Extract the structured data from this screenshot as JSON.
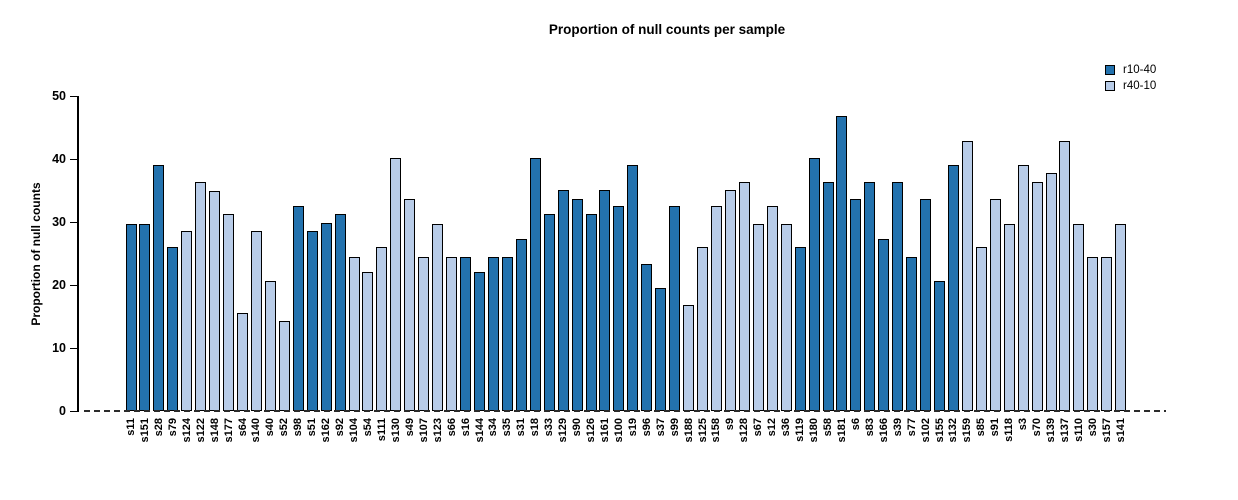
{
  "chart_data": {
    "type": "bar",
    "title": "Proportion of null counts per sample",
    "ylabel": "Proportion of null counts",
    "xlabel": "",
    "ylim": [
      0,
      50
    ],
    "yticks": [
      0,
      10,
      20,
      30,
      40,
      50
    ],
    "grid": false,
    "legend_position": "top-right",
    "legend": [
      {
        "name": "r10-40",
        "color": "#2372ae"
      },
      {
        "name": "r40-10",
        "color": "#b8cce8"
      }
    ],
    "baseline_style": "dashed",
    "bars": [
      {
        "label": "s11",
        "value": 29.7,
        "series": "r10-40"
      },
      {
        "label": "s151",
        "value": 29.7,
        "series": "r10-40"
      },
      {
        "label": "s28",
        "value": 39.0,
        "series": "r10-40"
      },
      {
        "label": "s79",
        "value": 26.0,
        "series": "r10-40"
      },
      {
        "label": "s124",
        "value": 28.6,
        "series": "r40-10"
      },
      {
        "label": "s122",
        "value": 36.3,
        "series": "r40-10"
      },
      {
        "label": "s148",
        "value": 34.9,
        "series": "r40-10"
      },
      {
        "label": "s177",
        "value": 31.2,
        "series": "r40-10"
      },
      {
        "label": "s64",
        "value": 15.5,
        "series": "r40-10"
      },
      {
        "label": "s140",
        "value": 28.6,
        "series": "r40-10"
      },
      {
        "label": "s40",
        "value": 20.7,
        "series": "r40-10"
      },
      {
        "label": "s52",
        "value": 14.3,
        "series": "r40-10"
      },
      {
        "label": "s98",
        "value": 32.5,
        "series": "r10-40"
      },
      {
        "label": "s51",
        "value": 28.6,
        "series": "r10-40"
      },
      {
        "label": "s162",
        "value": 29.8,
        "series": "r10-40"
      },
      {
        "label": "s92",
        "value": 31.2,
        "series": "r10-40"
      },
      {
        "label": "s104",
        "value": 24.5,
        "series": "r40-10"
      },
      {
        "label": "s54",
        "value": 22.0,
        "series": "r40-10"
      },
      {
        "label": "s111",
        "value": 26.0,
        "series": "r40-10"
      },
      {
        "label": "s130",
        "value": 40.2,
        "series": "r40-10"
      },
      {
        "label": "s49",
        "value": 33.7,
        "series": "r40-10"
      },
      {
        "label": "s107",
        "value": 24.5,
        "series": "r40-10"
      },
      {
        "label": "s123",
        "value": 29.7,
        "series": "r40-10"
      },
      {
        "label": "s66",
        "value": 24.5,
        "series": "r40-10"
      },
      {
        "label": "s16",
        "value": 24.5,
        "series": "r10-40"
      },
      {
        "label": "s144",
        "value": 22.0,
        "series": "r10-40"
      },
      {
        "label": "s34",
        "value": 24.5,
        "series": "r10-40"
      },
      {
        "label": "s35",
        "value": 24.5,
        "series": "r10-40"
      },
      {
        "label": "s31",
        "value": 27.3,
        "series": "r10-40"
      },
      {
        "label": "s18",
        "value": 40.2,
        "series": "r10-40"
      },
      {
        "label": "s33",
        "value": 31.2,
        "series": "r10-40"
      },
      {
        "label": "s129",
        "value": 35.0,
        "series": "r10-40"
      },
      {
        "label": "s90",
        "value": 33.7,
        "series": "r10-40"
      },
      {
        "label": "s126",
        "value": 31.2,
        "series": "r10-40"
      },
      {
        "label": "s161",
        "value": 35.0,
        "series": "r10-40"
      },
      {
        "label": "s100",
        "value": 32.5,
        "series": "r10-40"
      },
      {
        "label": "s19",
        "value": 39.0,
        "series": "r10-40"
      },
      {
        "label": "s96",
        "value": 23.3,
        "series": "r10-40"
      },
      {
        "label": "s37",
        "value": 19.5,
        "series": "r10-40"
      },
      {
        "label": "s99",
        "value": 32.5,
        "series": "r10-40"
      },
      {
        "label": "s188",
        "value": 16.9,
        "series": "r40-10"
      },
      {
        "label": "s125",
        "value": 26.0,
        "series": "r40-10"
      },
      {
        "label": "s158",
        "value": 32.5,
        "series": "r40-10"
      },
      {
        "label": "s9",
        "value": 35.0,
        "series": "r40-10"
      },
      {
        "label": "s128",
        "value": 36.4,
        "series": "r40-10"
      },
      {
        "label": "s67",
        "value": 29.7,
        "series": "r40-10"
      },
      {
        "label": "s12",
        "value": 32.5,
        "series": "r40-10"
      },
      {
        "label": "s36",
        "value": 29.7,
        "series": "r40-10"
      },
      {
        "label": "s119",
        "value": 26.0,
        "series": "r10-40"
      },
      {
        "label": "s180",
        "value": 40.2,
        "series": "r10-40"
      },
      {
        "label": "s58",
        "value": 36.4,
        "series": "r10-40"
      },
      {
        "label": "s181",
        "value": 46.8,
        "series": "r10-40"
      },
      {
        "label": "s6",
        "value": 33.7,
        "series": "r10-40"
      },
      {
        "label": "s83",
        "value": 36.4,
        "series": "r10-40"
      },
      {
        "label": "s166",
        "value": 27.3,
        "series": "r10-40"
      },
      {
        "label": "s39",
        "value": 36.4,
        "series": "r10-40"
      },
      {
        "label": "s77",
        "value": 24.5,
        "series": "r10-40"
      },
      {
        "label": "s102",
        "value": 33.7,
        "series": "r10-40"
      },
      {
        "label": "s155",
        "value": 20.7,
        "series": "r10-40"
      },
      {
        "label": "s132",
        "value": 39.0,
        "series": "r10-40"
      },
      {
        "label": "s159",
        "value": 42.8,
        "series": "r40-10"
      },
      {
        "label": "s85",
        "value": 26.0,
        "series": "r40-10"
      },
      {
        "label": "s91",
        "value": 33.7,
        "series": "r40-10"
      },
      {
        "label": "s118",
        "value": 29.7,
        "series": "r40-10"
      },
      {
        "label": "s3",
        "value": 39.0,
        "series": "r40-10"
      },
      {
        "label": "s70",
        "value": 36.4,
        "series": "r40-10"
      },
      {
        "label": "s139",
        "value": 37.7,
        "series": "r40-10"
      },
      {
        "label": "s137",
        "value": 42.8,
        "series": "r40-10"
      },
      {
        "label": "s110",
        "value": 29.7,
        "series": "r40-10"
      },
      {
        "label": "s30",
        "value": 24.5,
        "series": "r40-10"
      },
      {
        "label": "s157",
        "value": 24.5,
        "series": "r40-10"
      },
      {
        "label": "s141",
        "value": 29.7,
        "series": "r40-10"
      }
    ]
  }
}
